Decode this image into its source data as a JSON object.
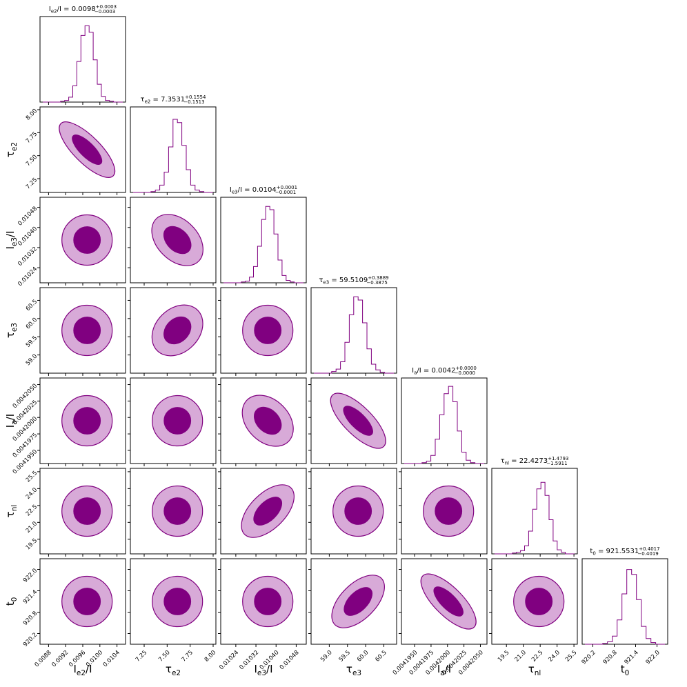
{
  "chart_data": {
    "type": "corner",
    "contour_color": "#800080",
    "inner_fill": "#800080",
    "outer_fill": "#d8aad8",
    "params": [
      {
        "id": "ie2",
        "label": "I_{e2}/I",
        "title_lhs": "I_{e2}/I",
        "value": "0.0098",
        "plus": "0.0003",
        "minus": "0.0003",
        "range": [
          0.0086,
          0.0106
        ],
        "ticks": [
          0.0088,
          0.0092,
          0.0096,
          0.01,
          0.0104
        ],
        "tick_labels": [
          "0.0088",
          "0.0092",
          "0.0096",
          "0.0100",
          "0.0104"
        ],
        "hist": [
          0.01,
          0.02,
          0.06,
          0.2,
          0.5,
          0.82,
          0.94,
          0.86,
          0.52,
          0.22,
          0.07,
          0.02,
          0.01
        ]
      },
      {
        "id": "te2",
        "label": "τ_{e2}",
        "title_lhs": "τ_{e2}",
        "value": "7.3531",
        "plus": "0.1554",
        "minus": "0.1513",
        "range": [
          7.1,
          8.03
        ],
        "ticks": [
          7.25,
          7.5,
          7.75,
          8.0
        ],
        "tick_labels": [
          "7.25",
          "7.50",
          "7.75",
          "8.00"
        ],
        "hist": [
          0.01,
          0.03,
          0.09,
          0.25,
          0.56,
          0.9,
          0.86,
          0.58,
          0.28,
          0.09,
          0.03,
          0.01
        ]
      },
      {
        "id": "ie3",
        "label": "I_{e3}/I",
        "title_lhs": "I_{e3}/I",
        "value": "0.0104",
        "plus": "0.0001",
        "minus": "0.0001",
        "range": [
          0.01018,
          0.01052
        ],
        "ticks": [
          0.01024,
          0.01032,
          0.0104,
          0.01048
        ],
        "tick_labels": [
          "0.01024",
          "0.01032",
          "0.01040",
          "0.01048"
        ],
        "hist": [
          0.01,
          0.02,
          0.07,
          0.2,
          0.45,
          0.78,
          0.94,
          0.9,
          0.6,
          0.28,
          0.09,
          0.03,
          0.01
        ]
      },
      {
        "id": "te3",
        "label": "τ_{e3}",
        "title_lhs": "τ_{e3}",
        "value": "59.5109",
        "plus": "0.3889",
        "minus": "0.3875",
        "range": [
          58.5,
          60.85
        ],
        "ticks": [
          59.0,
          59.5,
          60.0,
          60.5
        ],
        "tick_labels": [
          "59.0",
          "59.5",
          "60.0",
          "60.5"
        ],
        "hist": [
          0.02,
          0.05,
          0.14,
          0.38,
          0.72,
          0.94,
          0.9,
          0.62,
          0.3,
          0.11,
          0.04,
          0.01
        ]
      },
      {
        "id": "ia",
        "label": "I_a/I",
        "title_lhs": "I_a/I",
        "value": "0.0042",
        "plus": "0.0000",
        "minus": "0.0000",
        "range": [
          0.004193,
          0.004206
        ],
        "ticks": [
          0.004195,
          0.0041975,
          0.0042,
          0.0042025,
          0.004205
        ],
        "tick_labels": [
          "0.0041950",
          "0.0041975",
          "0.0042000",
          "0.0042025",
          "0.0042050"
        ],
        "hist": [
          0.01,
          0.03,
          0.1,
          0.3,
          0.6,
          0.86,
          0.95,
          0.76,
          0.4,
          0.14,
          0.04,
          0.01
        ]
      },
      {
        "id": "tnl",
        "label": "τ_{nl}",
        "title_lhs": "τ_{nl}",
        "value": "22.4273",
        "plus": "1.4793",
        "minus": "1.5911",
        "range": [
          18.2,
          25.8
        ],
        "ticks": [
          19.5,
          21.0,
          22.5,
          24.0,
          25.5
        ],
        "tick_labels": [
          "19.5",
          "21.0",
          "22.5",
          "24.0",
          "25.5"
        ],
        "hist": [
          0.01,
          0.02,
          0.04,
          0.1,
          0.28,
          0.55,
          0.8,
          0.88,
          0.72,
          0.42,
          0.16,
          0.05,
          0.02
        ]
      },
      {
        "id": "t0",
        "label": "t_0",
        "title_lhs": "t_0",
        "value": "921.5531",
        "plus": "0.4017",
        "minus": "0.4019",
        "range": [
          919.9,
          922.3
        ],
        "ticks": [
          920.2,
          920.8,
          921.4,
          922.0
        ],
        "tick_labels": [
          "920.2",
          "920.8",
          "921.4",
          "922.0"
        ],
        "hist": [
          0.01,
          0.03,
          0.1,
          0.3,
          0.62,
          0.92,
          0.86,
          0.55,
          0.22,
          0.07,
          0.02
        ]
      }
    ],
    "correlations": {
      "te2|ie2": -0.85,
      "ie3|te2": -0.35,
      "te3|te2": 0.25,
      "ia|te3": -0.8,
      "tnl|ie3": 0.55,
      "t0|te3": 0.55,
      "t0|ia": -0.8,
      "ia|ie3": -0.3
    }
  }
}
